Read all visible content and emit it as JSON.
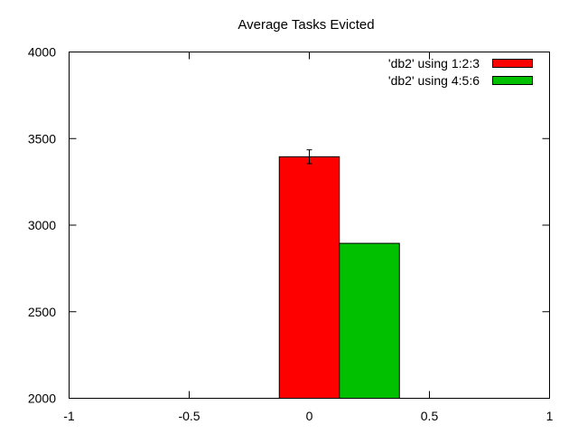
{
  "chart_data": {
    "type": "bar",
    "title": "Average Tasks Evicted",
    "xlabel": "",
    "ylabel": "",
    "xlim": [
      -1,
      1
    ],
    "ylim": [
      2000,
      4000
    ],
    "x_ticks": [
      -1,
      -0.5,
      0,
      0.5,
      1
    ],
    "x_tick_labels": [
      "-1",
      "-0.5",
      "0",
      "0.5",
      "1"
    ],
    "y_ticks": [
      2000,
      2500,
      3000,
      3500,
      4000
    ],
    "y_tick_labels": [
      "2000",
      "2500",
      "3000",
      "3500",
      "4000"
    ],
    "grid": false,
    "legend_position": "top-right",
    "series": [
      {
        "name": "'db2' using 1:2:3",
        "color": "#ff0000",
        "x_start": -0.125,
        "x_end": 0.125,
        "value": 3395,
        "error": 40
      },
      {
        "name": "'db2' using 4:5:6",
        "color": "#00c000",
        "x_start": 0.125,
        "x_end": 0.375,
        "value": 2895,
        "error": null
      }
    ]
  }
}
